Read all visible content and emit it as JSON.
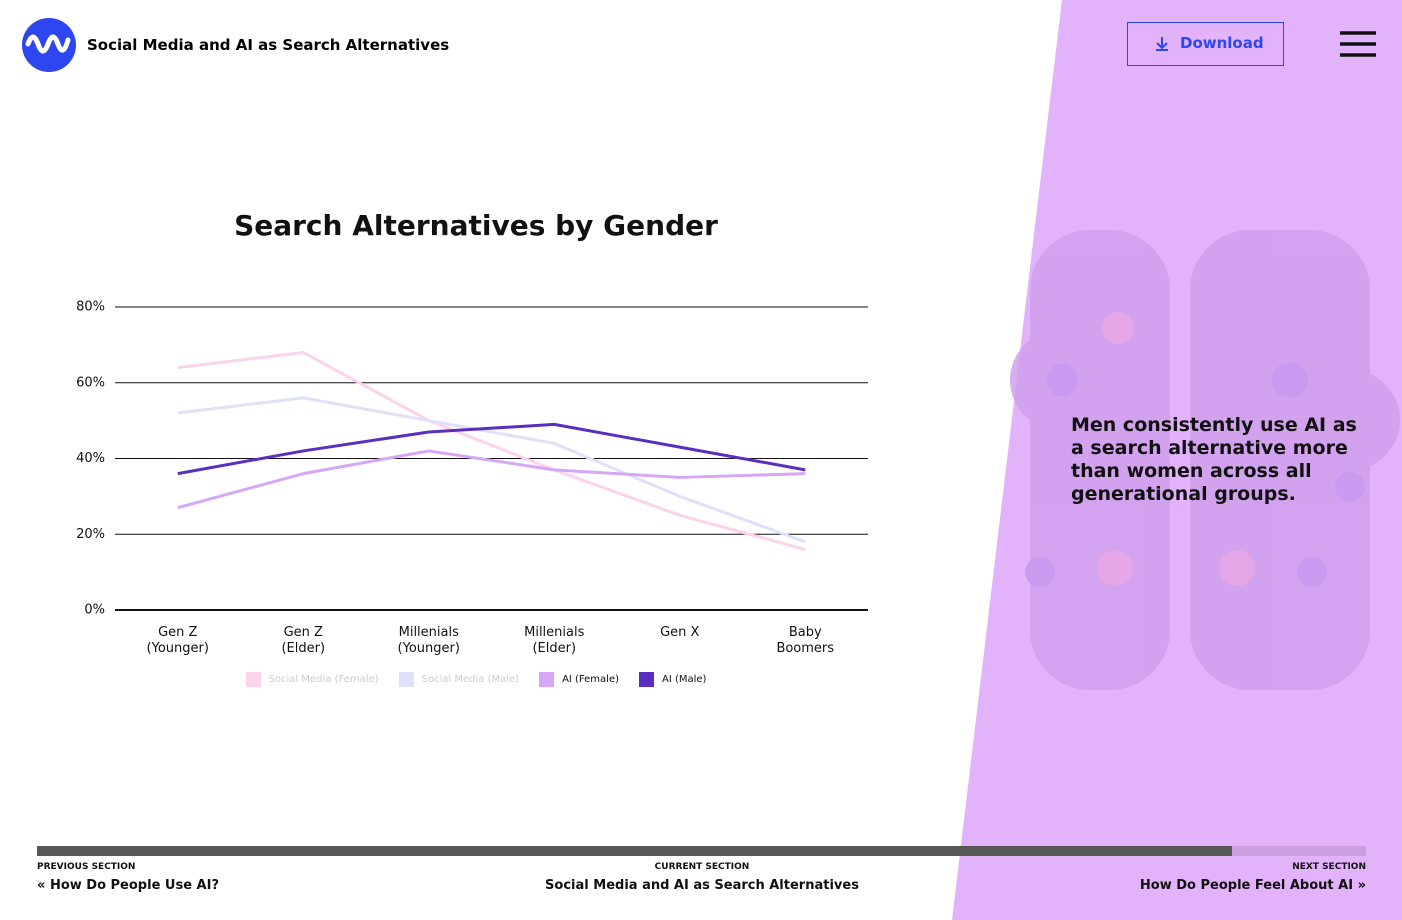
{
  "header": {
    "title": "Social Media and AI as Search Alternatives",
    "download": "Download"
  },
  "chart_data": {
    "type": "line",
    "title": "Search Alternatives by Gender",
    "categories": [
      "Gen Z (Younger)",
      "Gen Z (Elder)",
      "Millenials (Younger)",
      "Millenials (Elder)",
      "Gen X",
      "Baby Boomers"
    ],
    "series": [
      {
        "name": "Social Media (Female)",
        "color": "#fbd3ea",
        "dimmed": true,
        "values": [
          64,
          68,
          50,
          37,
          25,
          16
        ]
      },
      {
        "name": "Social Media (Male)",
        "color": "#dfe1fa",
        "dimmed": true,
        "values": [
          52,
          56,
          50,
          44,
          30,
          18
        ]
      },
      {
        "name": "AI (Female)",
        "color": "#d6a6f7",
        "values": [
          27,
          36,
          42,
          37,
          35,
          36
        ]
      },
      {
        "name": "AI (Male)",
        "color": "#5a2fc0",
        "values": [
          36,
          42,
          47,
          49,
          43,
          37
        ]
      }
    ],
    "ylim": [
      0,
      80
    ],
    "yticks": [
      {
        "value": 0,
        "label": "0%"
      },
      {
        "value": 20,
        "label": "20%"
      },
      {
        "value": 40,
        "label": "40%"
      },
      {
        "value": 60,
        "label": "60%"
      },
      {
        "value": 80,
        "label": "80%"
      }
    ],
    "grid": true
  },
  "insight": "Men consistently use AI as a search alternative more than women across all generational groups.",
  "footer": {
    "previous_label": "PREVIOUS SECTION",
    "previous": "How Do People Use AI?",
    "current_label": "CURRENT SECTION",
    "current": "Social Media and AI as Search Alternatives",
    "next_label": "NEXT SECTION",
    "next": "How Do People Feel About AI"
  }
}
